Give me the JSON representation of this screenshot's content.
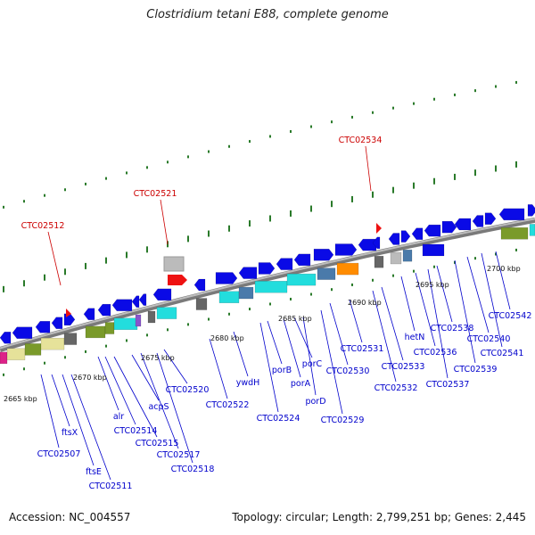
{
  "title": "Clostridium tetani E88, complete genome",
  "footer": {
    "accession": "Accession: NC_004557",
    "topology": "Topology: circular; Length: 2,799,251 bp; Genes: 2,445"
  },
  "colors": {
    "backbone": "#888888",
    "forward_gene": "#0a0ae6",
    "highlight": "#ee1111",
    "label_blue": "#0000cc",
    "label_red": "#cc0000",
    "tick": "#2a7a2a",
    "cyan": "#22dddd",
    "olive": "#7a9a2a",
    "grey": "#bbbbbb",
    "dark_grey": "#666666",
    "pink": "#dd2288",
    "khaki": "#e6e29a",
    "steel": "#4a7aaa",
    "orange": "#ff8c00"
  },
  "scale_labels": [
    "2665 kbp",
    "2670 kbp",
    "2675 kbp",
    "2680 kbp",
    "2685 kbp",
    "2690 kbp",
    "2695 kbp",
    "2700 kbp"
  ],
  "highlighted_genes": [
    "CTC02512",
    "CTC02521",
    "CTC02534"
  ],
  "gene_labels": [
    "CTC02507",
    "ftsX",
    "ftsE",
    "CTC02511",
    "alr",
    "CTC02514",
    "CTC02515",
    "acpS",
    "CTC02517",
    "CTC02518",
    "CTC02520",
    "CTC02522",
    "ywdH",
    "CTC02524",
    "porB",
    "porA",
    "porC",
    "porD",
    "CTC02529",
    "CTC02530",
    "CTC02531",
    "CTC02532",
    "CTC02533",
    "hetN",
    "CTC02536",
    "CTC02537",
    "CTC02538",
    "CTC02539",
    "CTC02540",
    "CTC02541",
    "CTC02542"
  ]
}
